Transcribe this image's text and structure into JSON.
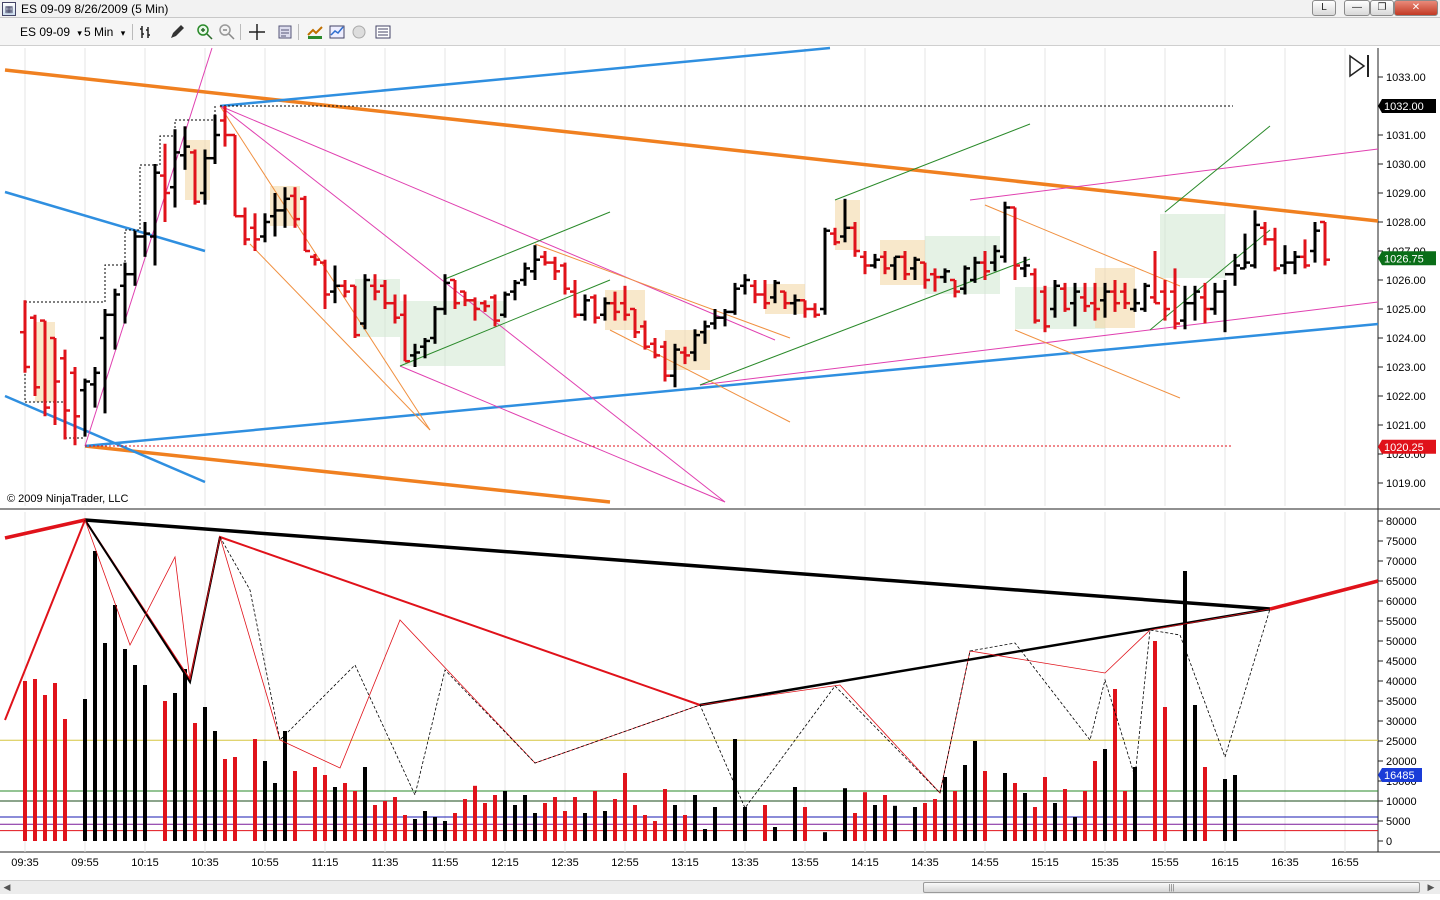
{
  "window": {
    "title": "ES 09-09  8/26/2009 (5 Min)",
    "app_icon": "ninjatrader-app-icon",
    "button_l": "L",
    "minimize": "—",
    "restore": "❐",
    "close": "✕"
  },
  "toolbar": {
    "instrument": "ES 09-09",
    "interval": "5 Min",
    "dropdown_glyph": "▾",
    "icons": {
      "bar_type": "bar-type-icon",
      "draw": "pencil-icon",
      "zoom_in": "zoom-in-icon",
      "zoom_out": "zoom-out-icon",
      "crosshair": "crosshair-icon",
      "properties": "properties-icon",
      "strategies": "strategies-icon",
      "indicators": "indicators-icon",
      "data_box": "data-box-icon",
      "chart_trader": "chart-trader-icon"
    }
  },
  "price_panel": {
    "copyright": "© 2009 NinjaTrader, LLC",
    "price_labels": [
      "1033.00",
      "1032.00",
      "1031.00",
      "1030.00",
      "1029.00",
      "1028.00",
      "1027.00",
      "1026.00",
      "1025.00",
      "1024.00",
      "1023.00",
      "1022.00",
      "1021.00",
      "1020.00",
      "1019.00"
    ],
    "marker_high": "1032.00",
    "marker_last": "1026.75",
    "marker_low": "1020.25",
    "marker_high_color": "#000000",
    "marker_last_color": "#0a6e18",
    "marker_low_color": "#e0121a",
    "scroll_end_icon": "scroll-to-end-icon"
  },
  "volume_panel": {
    "labels": [
      "80000",
      "75000",
      "70000",
      "65000",
      "60000",
      "55000",
      "50000",
      "45000",
      "40000",
      "35000",
      "30000",
      "25000",
      "20000",
      "15000",
      "10000",
      "5000",
      "0"
    ],
    "marker_last": "16485",
    "marker_color": "#1a3cd8"
  },
  "time_axis": {
    "labels": [
      "09:35",
      "09:55",
      "10:15",
      "10:35",
      "10:55",
      "11:15",
      "11:35",
      "11:55",
      "12:15",
      "12:35",
      "12:55",
      "13:15",
      "13:35",
      "13:55",
      "14:15",
      "14:35",
      "14:55",
      "15:15",
      "15:35",
      "15:55",
      "16:15",
      "16:35",
      "16:55"
    ]
  },
  "scrollbar": {
    "left": "◀",
    "right": "▶",
    "grip": "|||"
  },
  "colors": {
    "up": "#000000",
    "down": "#e0121a",
    "blue_line": "#2f8fe0",
    "orange_line": "#f08020",
    "magenta_line": "#e040b0",
    "green_line": "#2a8a2a"
  }
}
